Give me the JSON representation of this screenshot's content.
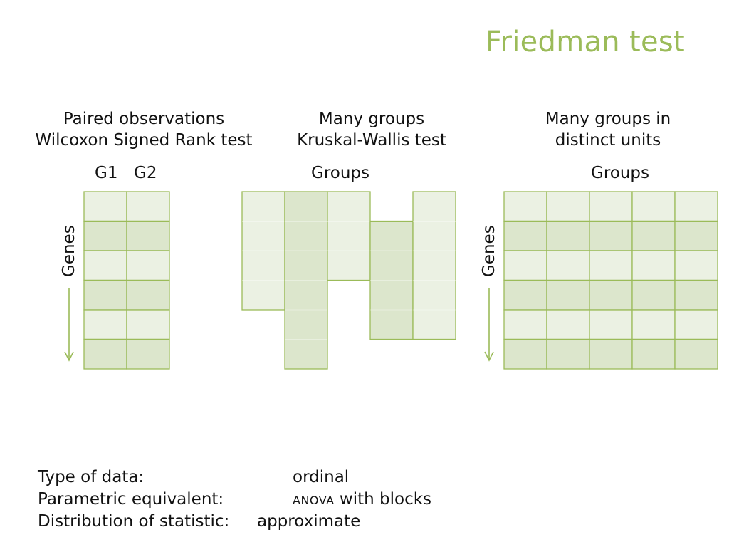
{
  "title": "Friedman test",
  "colors": {
    "accent": "#9bbb59",
    "fill_light": "#ebf1e3",
    "fill_dark": "#dce6cc",
    "stroke": "#9bbb59"
  },
  "panels": [
    {
      "line1": "Paired observations",
      "line2": "Wilcoxon Signed Rank test",
      "col_labels": [
        "G1",
        "G2"
      ],
      "row_axis_label": "Genes"
    },
    {
      "line1": "Many groups",
      "line2": "Kruskal-Wallis test",
      "col_axis_label": "Groups",
      "column_lengths": [
        4,
        6,
        3,
        4,
        5
      ]
    },
    {
      "line1": "Many groups in",
      "line2": "distinct units",
      "col_axis_label": "Groups",
      "row_axis_label": "Genes",
      "rows": 6,
      "cols": 5
    }
  ],
  "summary": [
    {
      "label": "Type of data:",
      "value": "ordinal"
    },
    {
      "label": "Parametric equivalent:",
      "value_smallcaps": "anova",
      "value_rest": " with blocks"
    },
    {
      "label": "Distribution of statistic:",
      "value": "approximate"
    }
  ]
}
